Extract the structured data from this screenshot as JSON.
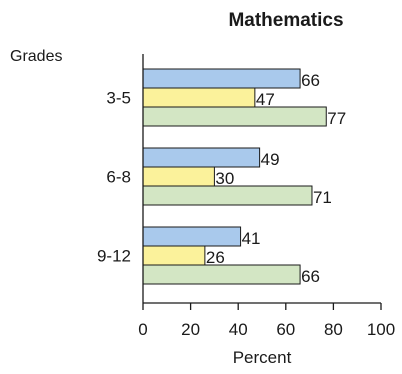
{
  "chart_data": {
    "type": "bar",
    "orientation": "horizontal",
    "title": "Mathematics",
    "category_axis_title": "Grades",
    "xlabel": "Percent",
    "categories": [
      "3-5",
      "6-8",
      "9-12"
    ],
    "xlim": [
      0,
      100
    ],
    "xticks": [
      0,
      20,
      40,
      60,
      80,
      100
    ],
    "grid": false,
    "legend": "none",
    "series": [
      {
        "color": "#a9c9ec",
        "values": [
          66,
          49,
          41
        ]
      },
      {
        "color": "#fbf29b",
        "values": [
          47,
          30,
          26
        ]
      },
      {
        "color": "#d3e6c4",
        "values": [
          77,
          71,
          66
        ]
      }
    ]
  }
}
